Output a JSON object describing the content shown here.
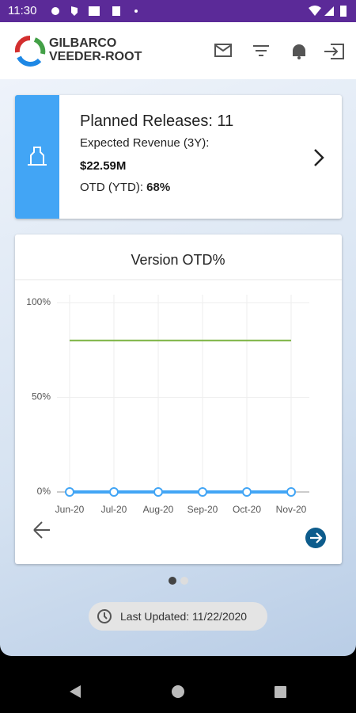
{
  "status_bar": {
    "time": "11:30"
  },
  "header": {
    "logo_line1": "GILBARCO",
    "logo_line2": "VEEDER-ROOT"
  },
  "summary_card": {
    "title": "Planned Releases: 11",
    "revenue_label": "Expected Revenue (3Y):",
    "revenue_value": "$22.59M",
    "otd_label": "OTD (YTD):",
    "otd_value": "68%"
  },
  "chart_data": {
    "type": "line",
    "title": "Version OTD%",
    "categories": [
      "Jun-20",
      "Jul-20",
      "Aug-20",
      "Sep-20",
      "Oct-20",
      "Nov-20"
    ],
    "series": [
      {
        "color": "#42a5f5",
        "values": [
          0,
          0,
          0,
          0,
          0,
          0
        ],
        "markers": true
      },
      {
        "color": "#7cb342",
        "values": [
          80,
          80,
          80,
          80,
          80,
          80
        ],
        "markers": false
      }
    ],
    "ylim": [
      0,
      100
    ],
    "yticks": [
      {
        "value": 0,
        "label": "0%"
      },
      {
        "value": 50,
        "label": "50%"
      },
      {
        "value": 100,
        "label": "100%"
      }
    ],
    "grid": true
  },
  "footer": {
    "last_updated": "Last Updated: 11/22/2020"
  }
}
